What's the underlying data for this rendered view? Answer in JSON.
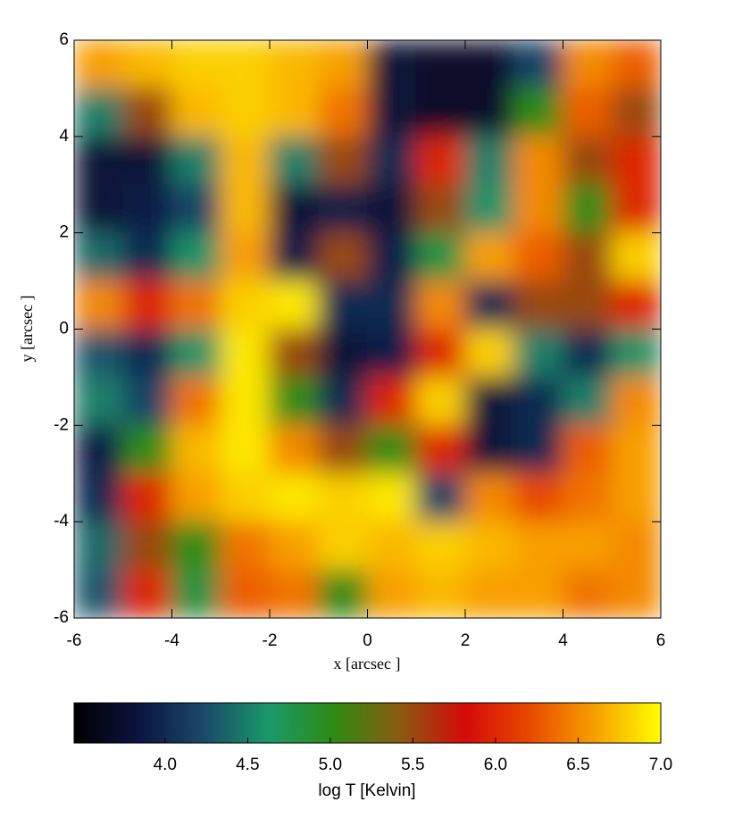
{
  "chart_data": {
    "type": "heatmap",
    "x": [
      -5.5,
      -4.5,
      -3.5,
      -2.5,
      -1.5,
      -0.5,
      0.5,
      1.5,
      2.5,
      3.5,
      4.5,
      5.5
    ],
    "y": [
      5.5,
      4.5,
      3.5,
      2.5,
      1.5,
      0.5,
      -0.5,
      -1.5,
      -2.5,
      -3.5,
      -4.5,
      -5.5
    ],
    "values": [
      [
        6.6,
        6.7,
        6.8,
        6.8,
        6.7,
        6.6,
        3.8,
        3.7,
        3.7,
        4.2,
        6.5,
        6.3
      ],
      [
        4.5,
        5.5,
        6.7,
        6.8,
        6.7,
        6.4,
        3.8,
        3.7,
        3.7,
        5.0,
        6.3,
        5.5
      ],
      [
        3.8,
        3.8,
        4.5,
        6.7,
        4.5,
        5.5,
        4.0,
        6.0,
        4.5,
        6.5,
        5.5,
        6.0
      ],
      [
        3.8,
        3.9,
        4.2,
        6.7,
        3.8,
        3.9,
        3.8,
        5.5,
        4.6,
        6.5,
        5.0,
        6.0
      ],
      [
        4.4,
        4.0,
        4.6,
        6.6,
        3.9,
        5.5,
        3.9,
        4.8,
        6.6,
        6.3,
        5.5,
        6.8
      ],
      [
        6.5,
        6.0,
        6.4,
        6.8,
        6.9,
        4.0,
        4.0,
        6.5,
        4.0,
        5.5,
        5.5,
        6.0
      ],
      [
        4.3,
        4.0,
        4.6,
        6.9,
        5.5,
        3.8,
        3.9,
        6.0,
        6.8,
        4.5,
        4.0,
        4.6
      ],
      [
        4.5,
        4.2,
        6.4,
        6.9,
        5.0,
        4.0,
        6.0,
        6.8,
        3.8,
        4.0,
        4.5,
        6.5
      ],
      [
        3.9,
        5.0,
        6.7,
        6.9,
        6.5,
        5.5,
        5.0,
        6.0,
        3.8,
        4.0,
        6.3,
        6.6
      ],
      [
        4.0,
        6.0,
        6.6,
        6.8,
        6.9,
        6.8,
        6.9,
        4.2,
        6.5,
        6.2,
        6.4,
        6.6
      ],
      [
        4.4,
        5.5,
        5.0,
        6.4,
        6.6,
        6.8,
        6.7,
        6.8,
        6.7,
        6.6,
        6.6,
        6.5
      ],
      [
        4.3,
        6.0,
        4.8,
        6.3,
        6.4,
        5.0,
        6.6,
        6.7,
        6.6,
        6.6,
        6.4,
        6.5
      ]
    ],
    "xlim": [
      -6,
      6
    ],
    "ylim": [
      -6,
      6
    ],
    "xticks": [
      -6,
      -4,
      -2,
      0,
      2,
      4,
      6
    ],
    "yticks": [
      -6,
      -4,
      -2,
      0,
      2,
      4,
      6
    ],
    "xlabel": "x [arcsec ]",
    "ylabel": "y [arcsec ]",
    "colormap": [
      "#000000",
      "#0b1440",
      "#1b4a6a",
      "#1a9a68",
      "#2f8a12",
      "#8a5a10",
      "#d40a0a",
      "#e84a00",
      "#f8a000",
      "#ffff00"
    ],
    "colorbar": {
      "label": "log T [Kelvin]",
      "lim": [
        3.45,
        7.0
      ],
      "ticks": [
        {
          "value": 4,
          "label": "4.0"
        },
        {
          "value": 4.5,
          "label": "4.5"
        },
        {
          "value": 5,
          "label": "5.0"
        },
        {
          "value": 5.5,
          "label": "5.5"
        },
        {
          "value": 6,
          "label": "6.0"
        },
        {
          "value": 6.5,
          "label": "6.5"
        },
        {
          "value": 7,
          "label": "7.0"
        }
      ]
    }
  }
}
